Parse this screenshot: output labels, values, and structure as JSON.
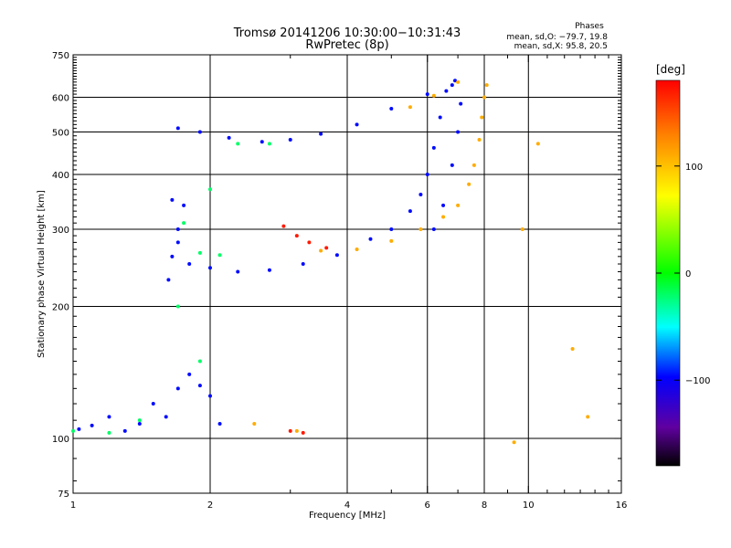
{
  "chart_data": {
    "type": "scatter",
    "title": "Tromsø 20141206 10:30:00−10:31:43",
    "subtitle": "RwPretec (8p)",
    "xlabel": "Frequency [MHz]",
    "ylabel": "Stationary phase Virtual Height [km]",
    "x_scale": "log",
    "y_scale": "log",
    "xlim": [
      1,
      16
    ],
    "ylim": [
      75,
      750
    ],
    "x_ticks": [
      1,
      2,
      4,
      6,
      8,
      10,
      16
    ],
    "y_ticks": [
      75,
      100,
      200,
      300,
      400,
      500,
      600,
      750
    ],
    "x_gridlines": [
      2,
      4,
      6,
      8,
      10
    ],
    "y_gridlines": [
      100,
      200,
      300,
      400,
      500,
      600
    ],
    "grid": true,
    "stats": {
      "header": "Phases",
      "line_o": "mean, sd,O: −79.7, 19.8",
      "line_x": "mean, sd,X:  95.8, 20.5"
    },
    "colorbar": {
      "label": "[deg]",
      "range": [
        -180,
        180
      ],
      "ticks": [
        100,
        0,
        -100
      ],
      "colors": [
        "#ff0000",
        "#ff8000",
        "#ffff00",
        "#00ff00",
        "#00ffff",
        "#0000ff",
        "#6000a0",
        "#000000"
      ]
    },
    "series": [
      {
        "color_value": -95,
        "points": [
          [
            1.03,
            105
          ],
          [
            1.1,
            107
          ],
          [
            1.2,
            112
          ],
          [
            1.3,
            104
          ],
          [
            1.4,
            108
          ],
          [
            1.5,
            120
          ],
          [
            1.6,
            112
          ],
          [
            1.7,
            130
          ],
          [
            1.8,
            140
          ],
          [
            1.9,
            132
          ],
          [
            2.0,
            125
          ],
          [
            2.1,
            108
          ],
          [
            1.62,
            230
          ],
          [
            1.65,
            260
          ],
          [
            1.7,
            300
          ],
          [
            1.75,
            340
          ],
          [
            1.65,
            350
          ],
          [
            1.7,
            280
          ],
          [
            1.8,
            250
          ],
          [
            2.0,
            245
          ],
          [
            2.3,
            240
          ],
          [
            2.7,
            242
          ],
          [
            3.2,
            250
          ],
          [
            3.8,
            262
          ],
          [
            4.5,
            285
          ],
          [
            5.0,
            300
          ],
          [
            5.5,
            330
          ],
          [
            5.8,
            360
          ],
          [
            6.0,
            400
          ],
          [
            6.2,
            460
          ],
          [
            6.4,
            540
          ],
          [
            6.6,
            620
          ],
          [
            6.9,
            655
          ],
          [
            1.7,
            510
          ],
          [
            1.9,
            500
          ],
          [
            2.2,
            485
          ],
          [
            2.6,
            475
          ],
          [
            3.0,
            480
          ],
          [
            3.5,
            495
          ],
          [
            4.2,
            520
          ],
          [
            5.0,
            565
          ],
          [
            6.0,
            610
          ],
          [
            6.8,
            640
          ],
          [
            6.2,
            300
          ],
          [
            6.5,
            340
          ],
          [
            6.8,
            420
          ],
          [
            7.0,
            500
          ],
          [
            7.1,
            580
          ]
        ]
      },
      {
        "color_value": -20,
        "points": [
          [
            1.0,
            104
          ],
          [
            1.2,
            103
          ],
          [
            1.4,
            110
          ],
          [
            1.7,
            200
          ],
          [
            1.75,
            310
          ],
          [
            1.9,
            265
          ],
          [
            2.1,
            262
          ],
          [
            1.9,
            150
          ],
          [
            2.0,
            370
          ],
          [
            2.3,
            470
          ],
          [
            2.7,
            470
          ]
        ]
      },
      {
        "color_value": 110,
        "points": [
          [
            3.5,
            268
          ],
          [
            4.2,
            270
          ],
          [
            5.0,
            282
          ],
          [
            5.8,
            300
          ],
          [
            6.5,
            320
          ],
          [
            7.0,
            340
          ],
          [
            7.4,
            380
          ],
          [
            7.6,
            420
          ],
          [
            7.8,
            480
          ],
          [
            7.9,
            540
          ],
          [
            8.0,
            600
          ],
          [
            8.1,
            640
          ],
          [
            7.0,
            650
          ],
          [
            6.2,
            605
          ],
          [
            5.5,
            570
          ],
          [
            9.7,
            300
          ],
          [
            10.5,
            470
          ],
          [
            12.5,
            160
          ],
          [
            13.5,
            112
          ],
          [
            2.5,
            108
          ],
          [
            3.1,
            104
          ],
          [
            9.3,
            98
          ]
        ]
      },
      {
        "color_value": 170,
        "points": [
          [
            2.9,
            305
          ],
          [
            3.1,
            290
          ],
          [
            3.3,
            280
          ],
          [
            3.6,
            272
          ],
          [
            3.0,
            104
          ],
          [
            3.2,
            103
          ]
        ]
      }
    ]
  }
}
